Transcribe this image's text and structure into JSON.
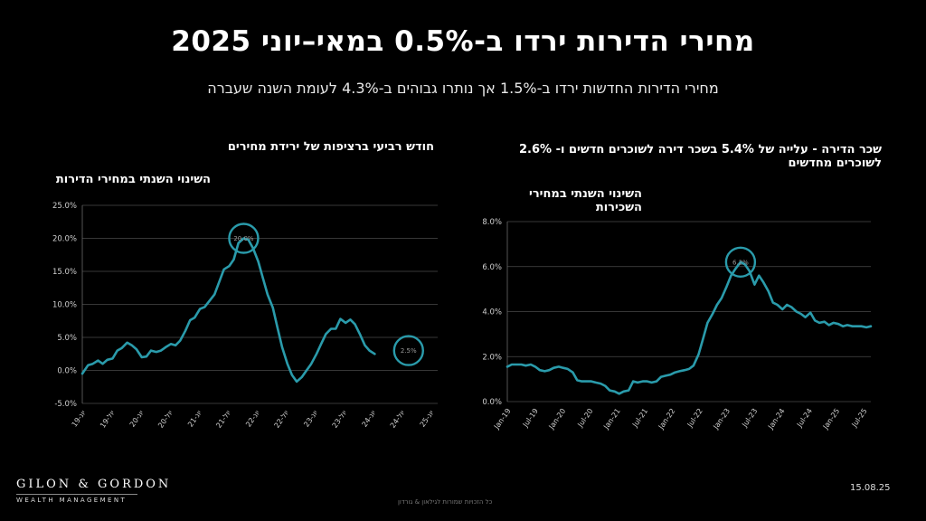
{
  "header": {
    "title": "מחירי הדירות ירדו ב-0.5% במאי–יוני 2025",
    "subtitle": "מחירי הדירות החדשות ירדו ב-1.5% אך נותרו גבוהים ב-4.3% לעומת השנה שעברה"
  },
  "footer": {
    "logo_name": "GILON & GORDON",
    "logo_sub": "WEALTH MANAGEMENT",
    "date": "15.08.25",
    "copyright": "כל הזכויות שמורות לגילאון & גורדון"
  },
  "colors": {
    "line": "#2a9bab",
    "background": "#000000",
    "logo_accent": "#c9a45c"
  },
  "chart_data": [
    {
      "type": "line",
      "heading": "חודש רביעי ברציפות של ירידת מחירים",
      "title": "השינוי השנתי במחירי הדירות",
      "ylim": [
        -5,
        25
      ],
      "yticks": [
        "25.0%",
        "20.0%",
        "15.0%",
        "10.0%",
        "5.0%",
        "0.0%",
        "-5.0%"
      ],
      "xticks": [
        "יונ-19",
        "יול-19",
        "יונ-20",
        "יול-20",
        "יונ-21",
        "יול-21",
        "יונ-22",
        "יול-22",
        "יונ-23",
        "יול-23",
        "יונ-24",
        "יול-24",
        "יונ-25"
      ],
      "x_range": [
        2019.4,
        2025.5
      ],
      "grid": true,
      "series": [
        {
          "x": [
            2019.4,
            2019.5,
            2019.58,
            2019.67,
            2019.75,
            2019.83,
            2019.92,
            2020.0,
            2020.08,
            2020.17,
            2020.25,
            2020.33,
            2020.42,
            2020.5,
            2020.58,
            2020.67,
            2020.75,
            2020.83,
            2020.92,
            2021.0,
            2021.08,
            2021.17,
            2021.25,
            2021.33,
            2021.42,
            2021.5,
            2021.58,
            2021.67,
            2021.75,
            2021.83,
            2021.92,
            2022.0,
            2022.08,
            2022.17,
            2022.25,
            2022.33,
            2022.42,
            2022.5,
            2022.58,
            2022.67,
            2022.75,
            2022.83,
            2022.92,
            2023.0,
            2023.08,
            2023.17,
            2023.25,
            2023.33,
            2023.42,
            2023.5,
            2023.58,
            2023.67,
            2023.75,
            2023.83,
            2023.92,
            2024.0,
            2024.08,
            2024.17,
            2024.25,
            2024.33,
            2024.42,
            2024.5,
            2024.58,
            2024.67,
            2024.75,
            2024.83,
            2024.92,
            2025.0,
            2025.08,
            2025.17,
            2025.25,
            2025.33,
            2025.42
          ],
          "values": [
            -0.5,
            0.8,
            1.0,
            1.5,
            1.0,
            1.6,
            1.8,
            3.0,
            3.4,
            4.2,
            3.8,
            3.2,
            2.0,
            2.1,
            3.0,
            2.8,
            3.0,
            3.5,
            4.0,
            3.8,
            4.5,
            6.0,
            7.6,
            8.0,
            9.3,
            9.6,
            10.5,
            11.5,
            13.4,
            15.3,
            15.8,
            16.8,
            19.3,
            20.0,
            19.8,
            18.5,
            16.5,
            14.0,
            11.5,
            9.5,
            6.5,
            3.5,
            1.0,
            -0.7,
            -1.7,
            -1.0,
            0.0,
            1.0,
            2.5,
            4.0,
            5.5,
            6.3,
            6.3,
            7.8,
            7.2,
            7.7,
            7.0,
            5.4,
            3.8,
            3.0,
            2.5,
            null,
            null,
            null,
            null,
            null,
            null,
            null,
            null,
            null,
            null,
            null,
            null
          ]
        }
      ],
      "annotations": [
        {
          "label": "20.0%",
          "x": 2022.17,
          "y": 20.0
        },
        {
          "label": "2.5%",
          "x": 2025.0,
          "y": 3.0
        }
      ]
    },
    {
      "type": "line",
      "heading": "שכר הדירה - עלייה של 5.4% בשכר דירה לשוכרים חדשים ו- 2.6% לשוכרים מחדשים",
      "title": "השינוי השנתי במחירי השכירות",
      "ylim": [
        0,
        8
      ],
      "yticks": [
        "8.0%",
        "6.0%",
        "4.0%",
        "2.0%",
        "0.0%"
      ],
      "xticks": [
        "Jan-19",
        "Jul-19",
        "Jan-20",
        "Jul-20",
        "Jan-21",
        "Jul-21",
        "Jan-22",
        "Jul-22",
        "Jan-23",
        "Jul-23",
        "Jan-24",
        "Jul-24",
        "Jan-25",
        "Jul-25"
      ],
      "x_range": [
        2019.0,
        2025.5
      ],
      "grid": true,
      "series": [
        {
          "x": [
            2019.0,
            2019.08,
            2019.17,
            2019.25,
            2019.33,
            2019.42,
            2019.5,
            2019.58,
            2019.67,
            2019.75,
            2019.83,
            2019.92,
            2020.0,
            2020.08,
            2020.17,
            2020.25,
            2020.33,
            2020.42,
            2020.5,
            2020.58,
            2020.67,
            2020.75,
            2020.83,
            2020.92,
            2021.0,
            2021.08,
            2021.17,
            2021.25,
            2021.33,
            2021.42,
            2021.5,
            2021.58,
            2021.67,
            2021.75,
            2021.83,
            2021.92,
            2022.0,
            2022.08,
            2022.17,
            2022.25,
            2022.33,
            2022.42,
            2022.5,
            2022.58,
            2022.67,
            2022.75,
            2022.83,
            2022.92,
            2023.0,
            2023.08,
            2023.17,
            2023.25,
            2023.33,
            2023.42,
            2023.5,
            2023.58,
            2023.67,
            2023.75,
            2023.83,
            2023.92,
            2024.0,
            2024.08,
            2024.17,
            2024.25,
            2024.33,
            2024.42,
            2024.5,
            2024.58,
            2024.67,
            2024.75,
            2024.83,
            2024.92,
            2025.0,
            2025.08,
            2025.17,
            2025.25,
            2025.33,
            2025.42,
            2025.5
          ],
          "values": [
            1.55,
            1.65,
            1.65,
            1.65,
            1.6,
            1.65,
            1.55,
            1.4,
            1.35,
            1.4,
            1.5,
            1.55,
            1.5,
            1.45,
            1.3,
            0.95,
            0.9,
            0.9,
            0.9,
            0.85,
            0.8,
            0.7,
            0.5,
            0.45,
            0.35,
            0.45,
            0.5,
            0.9,
            0.85,
            0.9,
            0.9,
            0.85,
            0.9,
            1.1,
            1.15,
            1.2,
            1.3,
            1.35,
            1.4,
            1.45,
            1.6,
            2.1,
            2.8,
            3.5,
            3.9,
            4.3,
            4.6,
            5.1,
            5.6,
            5.9,
            6.2,
            6.1,
            5.8,
            5.2,
            5.6,
            5.3,
            4.9,
            4.4,
            4.3,
            4.1,
            4.3,
            4.2,
            4.0,
            3.9,
            3.75,
            3.95,
            3.6,
            3.5,
            3.55,
            3.4,
            3.5,
            3.45,
            3.35,
            3.4,
            3.35,
            3.35,
            3.35,
            3.3,
            3.35
          ]
        }
      ],
      "annotations": [
        {
          "label": "6.2%",
          "x": 2023.17,
          "y": 6.2
        }
      ]
    }
  ]
}
